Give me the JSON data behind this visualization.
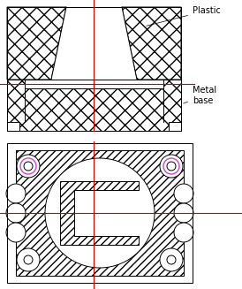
{
  "bg_color": "#ffffff",
  "line_color": "#000000",
  "red_line_color": "#cc0000",
  "pink_color": "#cc44cc",
  "label_plastic": "Plastic",
  "label_metal": "Metal\nbase",
  "annotation_fontsize": 7.0
}
